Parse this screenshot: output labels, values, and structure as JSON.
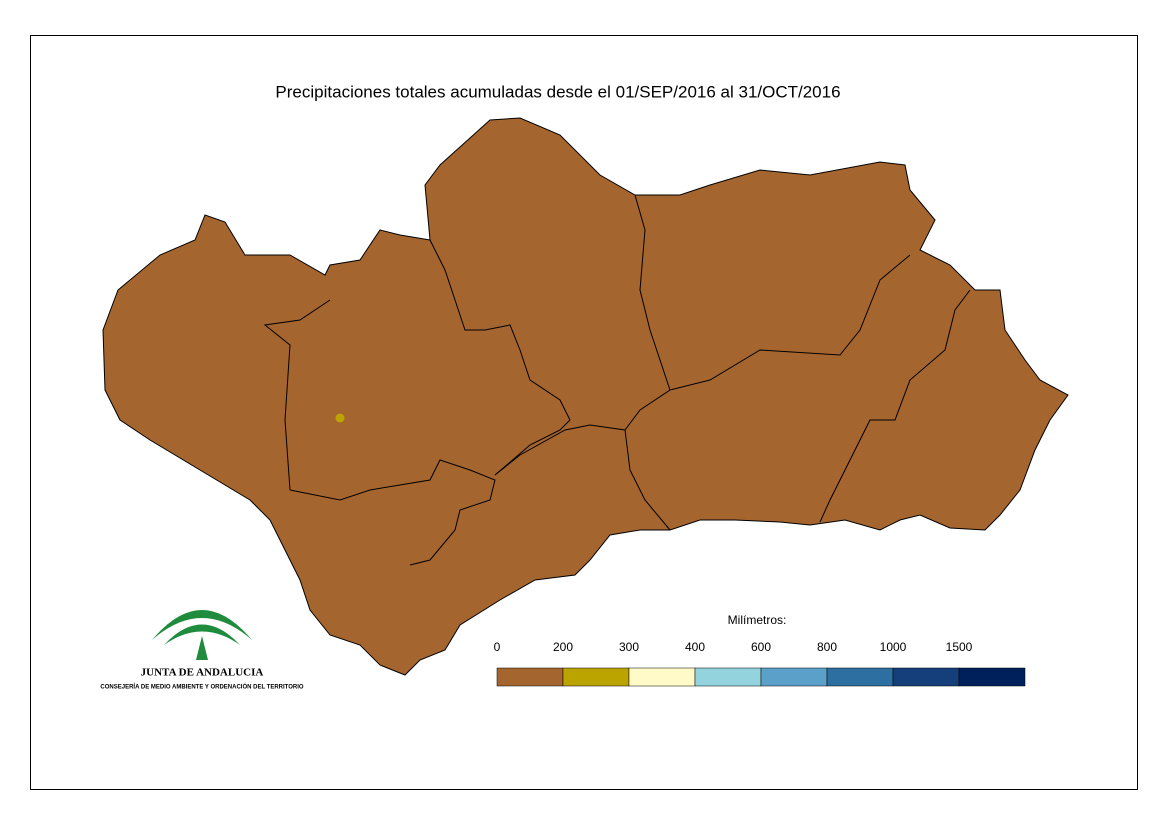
{
  "title": "Precipitaciones totales acumuladas desde el 01/SEP/2016 al 31/OCT/2016",
  "legend": {
    "title": "Milímetros:",
    "ticks": [
      0,
      200,
      300,
      400,
      600,
      800,
      1000,
      1500
    ],
    "colors": [
      "#a5652f",
      "#bba400",
      "#fffac8",
      "#92d3de",
      "#5ba0c8",
      "#2d6fa1",
      "#153f7a",
      "#00205b"
    ]
  },
  "logo": {
    "name": "JUNTA DE ANDALUCIA",
    "subtitle": "CONSEJERÍA DE MEDIO AMBIENTE Y ORDENACIÓN DEL TERRITORIO"
  }
}
